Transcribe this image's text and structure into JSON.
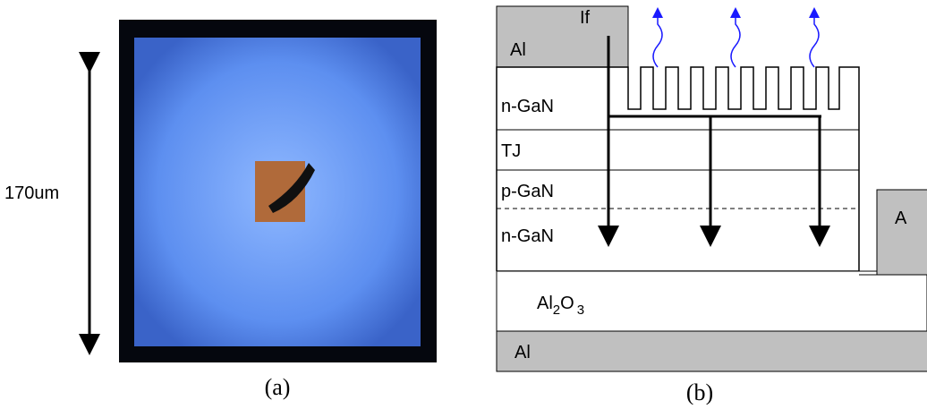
{
  "panel_a": {
    "dimension": "170um",
    "caption": "(a)"
  },
  "panel_b": {
    "contact_top": "Al",
    "current": "If",
    "layers": [
      "n-GaN",
      "TJ",
      "p-GaN",
      "n-GaN"
    ],
    "substrate": {
      "base": "Al",
      "sub1": "2",
      "mid": "O",
      "sub2": "3"
    },
    "contact_bottom": "Al",
    "contact_side": "A",
    "caption": "(b)"
  }
}
